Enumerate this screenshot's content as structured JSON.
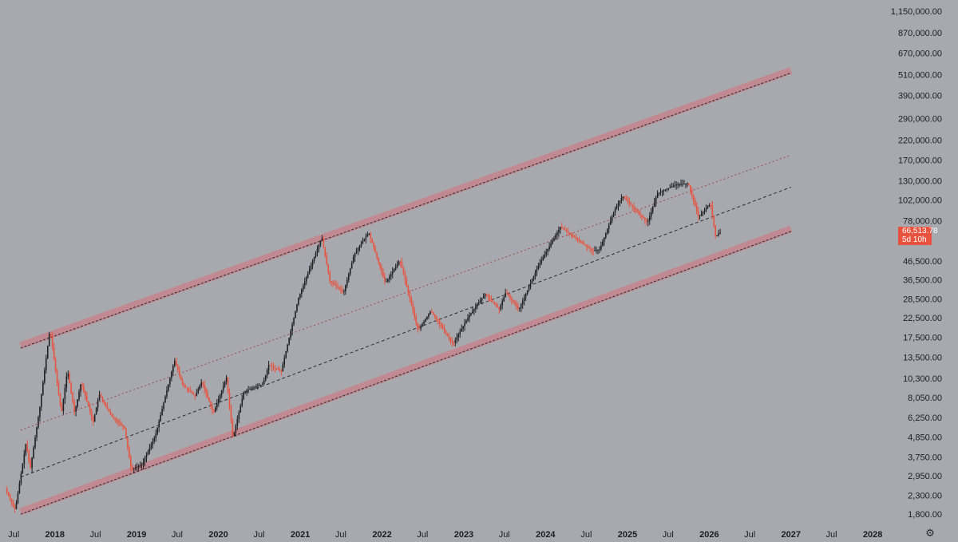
{
  "chart_data": {
    "type": "candlestick",
    "y_scale": "log",
    "ylim": [
      1500,
      1300000
    ],
    "xlim": [
      "2017-05-01",
      "2028-03-01"
    ],
    "price_axis_labels": [
      1150000,
      870000,
      670000,
      510000,
      390000,
      290000,
      220000,
      170000,
      130000,
      102000,
      78000,
      46500,
      36500,
      28500,
      22500,
      17500,
      13500,
      10300,
      8050,
      6250,
      4850,
      3750,
      2950,
      2300,
      1800
    ],
    "time_axis": [
      {
        "label": "Jul",
        "bold": false
      },
      {
        "label": "2018",
        "bold": true
      },
      {
        "label": "Jul",
        "bold": false
      },
      {
        "label": "2019",
        "bold": true
      },
      {
        "label": "Jul",
        "bold": false
      },
      {
        "label": "2020",
        "bold": true
      },
      {
        "label": "Jul",
        "bold": false
      },
      {
        "label": "2021",
        "bold": true
      },
      {
        "label": "Jul",
        "bold": false
      },
      {
        "label": "2022",
        "bold": true
      },
      {
        "label": "Jul",
        "bold": false
      },
      {
        "label": "2023",
        "bold": true
      },
      {
        "label": "Jul",
        "bold": false
      },
      {
        "label": "2024",
        "bold": true
      },
      {
        "label": "Jul",
        "bold": false
      },
      {
        "label": "2025",
        "bold": true
      },
      {
        "label": "Jul",
        "bold": false
      },
      {
        "label": "2026",
        "bold": true
      },
      {
        "label": "Jul",
        "bold": false
      },
      {
        "label": "2027",
        "bold": true
      },
      {
        "label": "Jul",
        "bold": false
      },
      {
        "label": "2028",
        "bold": true
      }
    ],
    "time_axis_dates": [
      "2017-07-01",
      "2018-01-01",
      "2018-07-01",
      "2019-01-01",
      "2019-07-01",
      "2020-01-01",
      "2020-07-01",
      "2021-01-01",
      "2021-07-01",
      "2022-01-01",
      "2022-07-01",
      "2023-01-01",
      "2023-07-01",
      "2024-01-01",
      "2024-07-01",
      "2025-01-01",
      "2025-07-01",
      "2026-01-01",
      "2026-07-01",
      "2027-01-01",
      "2027-07-01",
      "2028-01-01"
    ],
    "price_path": [
      [
        "2017-06-01",
        2500
      ],
      [
        "2017-07-15",
        1900
      ],
      [
        "2017-09-01",
        4500
      ],
      [
        "2017-09-20",
        3200
      ],
      [
        "2017-11-01",
        7000
      ],
      [
        "2017-12-17",
        19500
      ],
      [
        "2018-02-06",
        6500
      ],
      [
        "2018-03-05",
        11500
      ],
      [
        "2018-04-06",
        6600
      ],
      [
        "2018-05-05",
        9800
      ],
      [
        "2018-06-28",
        5900
      ],
      [
        "2018-07-25",
        8400
      ],
      [
        "2018-09-15",
        6400
      ],
      [
        "2018-11-14",
        5500
      ],
      [
        "2018-12-15",
        3200
      ],
      [
        "2019-02-01",
        3400
      ],
      [
        "2019-04-01",
        4900
      ],
      [
        "2019-06-26",
        13000
      ],
      [
        "2019-08-01",
        9500
      ],
      [
        "2019-09-26",
        8200
      ],
      [
        "2019-10-26",
        9900
      ],
      [
        "2019-12-17",
        6600
      ],
      [
        "2020-02-13",
        10400
      ],
      [
        "2020-03-13",
        4800
      ],
      [
        "2020-05-01",
        8700
      ],
      [
        "2020-07-25",
        9600
      ],
      [
        "2020-08-20",
        12200
      ],
      [
        "2020-10-15",
        11300
      ],
      [
        "2020-12-31",
        29000
      ],
      [
        "2021-04-14",
        63000
      ],
      [
        "2021-05-20",
        36000
      ],
      [
        "2021-07-20",
        31000
      ],
      [
        "2021-09-06",
        51000
      ],
      [
        "2021-11-10",
        67000
      ],
      [
        "2022-01-22",
        35000
      ],
      [
        "2022-03-29",
        47000
      ],
      [
        "2022-06-18",
        19000
      ],
      [
        "2022-08-14",
        24500
      ],
      [
        "2022-11-21",
        16000
      ],
      [
        "2023-01-31",
        23000
      ],
      [
        "2023-04-14",
        30500
      ],
      [
        "2023-06-15",
        25000
      ],
      [
        "2023-07-14",
        31000
      ],
      [
        "2023-09-11",
        25000
      ],
      [
        "2023-12-08",
        44000
      ],
      [
        "2024-03-14",
        72000
      ],
      [
        "2024-08-05",
        53000
      ],
      [
        "2024-09-06",
        54000
      ],
      [
        "2024-11-12",
        90000
      ],
      [
        "2024-12-17",
        107000
      ],
      [
        "2025-04-07",
        76000
      ],
      [
        "2025-05-22",
        111000
      ],
      [
        "2025-08-14",
        124000
      ],
      [
        "2025-10-06",
        126000
      ],
      [
        "2025-11-21",
        82000
      ],
      [
        "2026-01-14",
        97000
      ],
      [
        "2026-02-06",
        63000
      ],
      [
        "2026-02-20",
        66513.78
      ]
    ],
    "channel_lines": [
      {
        "name": "upper-band",
        "style": "band",
        "p1": [
          "2017-08-01",
          15200
        ],
        "p2": [
          "2027-01-01",
          520000
        ]
      },
      {
        "name": "upper-mid",
        "style": "dotted",
        "p1": [
          "2017-08-01",
          5300
        ],
        "p2": [
          "2027-01-01",
          181000
        ]
      },
      {
        "name": "center",
        "style": "dashed",
        "p1": [
          "2017-08-01",
          2900
        ],
        "p2": [
          "2027-01-01",
          120000
        ]
      },
      {
        "name": "lower-band",
        "style": "band",
        "p1": [
          "2017-08-01",
          1800
        ],
        "p2": [
          "2027-01-01",
          68000
        ]
      }
    ],
    "last_price": {
      "value": "66,513.78",
      "countdown": "5d 10h"
    },
    "colors": {
      "up": "#1f2024",
      "down": "#e8533f",
      "band": "#c4868e",
      "line": "#2b2b2f"
    },
    "grid": false,
    "legend": "none"
  },
  "ui": {
    "settings_icon": "gear-icon",
    "settings_glyph": "⚙"
  }
}
